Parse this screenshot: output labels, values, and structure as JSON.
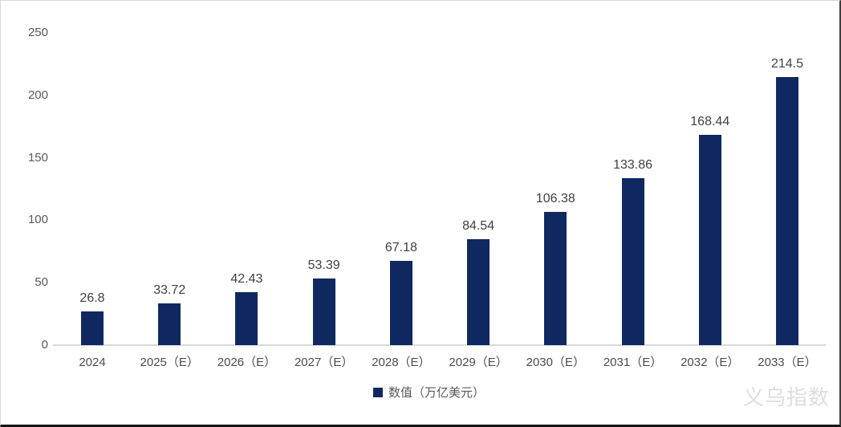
{
  "chart_data": {
    "type": "bar",
    "title": "",
    "categories": [
      "2024",
      "2025（E）",
      "2026（E）",
      "2027（E）",
      "2028（E）",
      "2029（E）",
      "2030（E）",
      "2031（E）",
      "2032（E）",
      "2033（E）"
    ],
    "values": [
      26.8,
      33.72,
      42.43,
      53.39,
      67.18,
      84.54,
      106.38,
      133.86,
      168.44,
      214.5
    ],
    "value_labels": [
      "26.8",
      "33.72",
      "42.43",
      "53.39",
      "67.18",
      "84.54",
      "106.38",
      "133.86",
      "168.44",
      "214.5"
    ],
    "series_name": "数值（万亿美元）",
    "xlabel": "",
    "ylabel": "",
    "ylim": [
      0,
      250
    ],
    "yticks": [
      0,
      50,
      100,
      150,
      200,
      250
    ],
    "grid": false,
    "legend_position": "bottom-center",
    "bar_color": "#0F2960"
  },
  "legend": {
    "label": "数值（万亿美元）"
  },
  "watermark": {
    "text": "义乌指数"
  },
  "colors": {
    "bar": "#0F2960",
    "axis_line": "#d9d9d9",
    "y_tick_text": "#595959",
    "x_tick_text": "#4d4d4d",
    "value_label_text": "#404040",
    "legend_text": "#595959",
    "watermark_text": "#dedede"
  }
}
